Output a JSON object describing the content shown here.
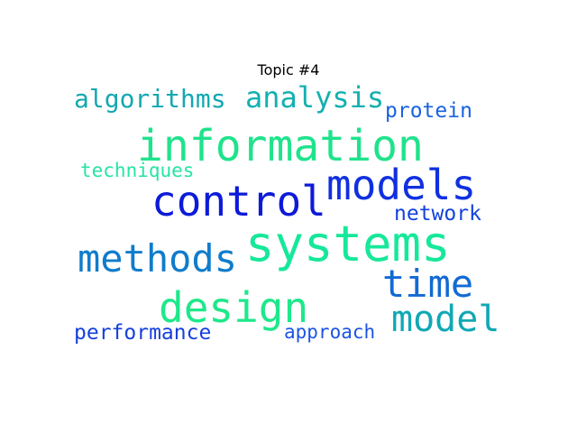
{
  "title": "Topic #4",
  "words": [
    {
      "text": "information",
      "color": "#1fe38c"
    },
    {
      "text": "systems",
      "color": "#16e89a"
    },
    {
      "text": "models",
      "color": "#1030e0"
    },
    {
      "text": "control",
      "color": "#0d1ad8"
    },
    {
      "text": "methods",
      "color": "#0f7ccc"
    },
    {
      "text": "design",
      "color": "#1ee88a"
    },
    {
      "text": "time",
      "color": "#116ad4"
    },
    {
      "text": "model",
      "color": "#10a8b4"
    },
    {
      "text": "analysis",
      "color": "#14b0b0"
    },
    {
      "text": "algorithms",
      "color": "#13a8b0"
    },
    {
      "text": "protein",
      "color": "#1a62e0"
    },
    {
      "text": "techniques",
      "color": "#27e3a6"
    },
    {
      "text": "network",
      "color": "#1342dc"
    },
    {
      "text": "performance",
      "color": "#1640dc"
    },
    {
      "text": "approach",
      "color": "#1b54e4"
    }
  ]
}
